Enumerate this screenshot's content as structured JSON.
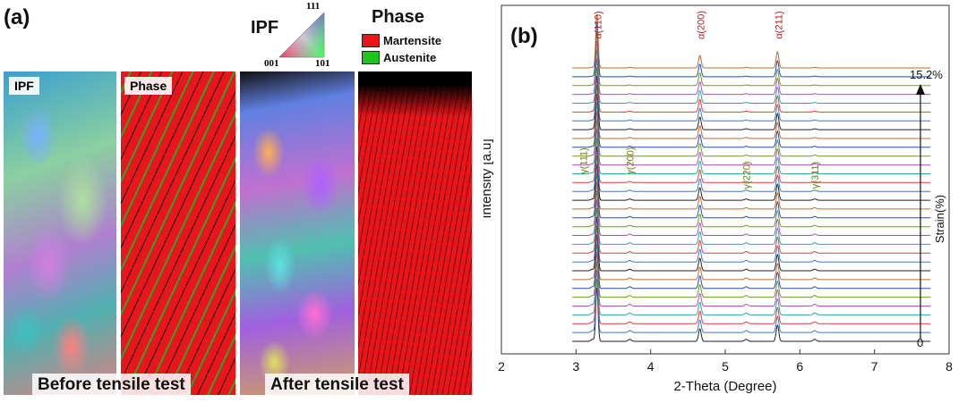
{
  "panel_a": {
    "tag": "(a)",
    "map_labels": {
      "ipf": "IPF",
      "phase": "Phase"
    },
    "ipf_key": {
      "title": "IPF",
      "c111": "111",
      "c001": "001",
      "c101": "101"
    },
    "legend": {
      "title": "Phase",
      "items": [
        {
          "label": "Martensite",
          "color": "#e8161a"
        },
        {
          "label": "Austenite",
          "color": "#1fc41f"
        }
      ]
    },
    "captions": {
      "before": "Before tensile test",
      "after": "After tensile test"
    }
  },
  "chart_data": {
    "type": "line",
    "panel_tag": "(b)",
    "xlabel": "2-Theta (Degree)",
    "ylabel": "Intensity [a.u]",
    "xlim": [
      2,
      8
    ],
    "xticks": [
      2,
      3,
      4,
      5,
      6,
      7,
      8
    ],
    "series_count": 32,
    "strain_axis": {
      "label": "Strain(%)",
      "start": "0",
      "end": "15.2%"
    },
    "peaks": [
      {
        "label": "α(110)",
        "x": 3.28,
        "phase": "alpha"
      },
      {
        "label": "α(200)",
        "x": 4.66,
        "phase": "alpha"
      },
      {
        "label": "α(211)",
        "x": 5.7,
        "phase": "alpha"
      },
      {
        "label": "γ(111)",
        "x": 3.22,
        "phase": "gamma"
      },
      {
        "label": "γ(200)",
        "x": 3.72,
        "phase": "gamma"
      },
      {
        "label": "γ(220)",
        "x": 5.28,
        "phase": "gamma"
      },
      {
        "label": "γ(311)",
        "x": 6.2,
        "phase": "gamma"
      }
    ],
    "colors": [
      "#222222",
      "#3a7ac9",
      "#d94040",
      "#2aa6a6",
      "#b050c0",
      "#6a9a2a",
      "#2050b0",
      "#c06a30"
    ]
  }
}
